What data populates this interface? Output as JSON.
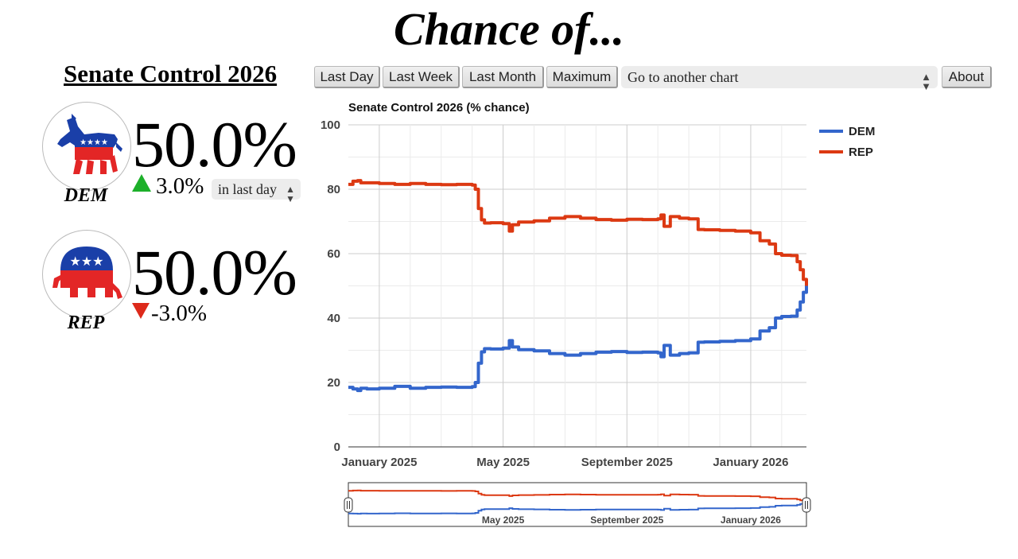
{
  "header": {
    "headline": "Chance of..."
  },
  "page_title": "Senate Control 2026",
  "toolbar": {
    "buttons": [
      "Last Day",
      "Last Week",
      "Last Month",
      "Maximum"
    ],
    "chart_select_value": "Go to another chart",
    "about_label": "About"
  },
  "parties": {
    "dem": {
      "name": "DEM",
      "pct": "50.0%",
      "change": "3.0%",
      "change_dir": "up",
      "period": "in last day"
    },
    "rep": {
      "name": "REP",
      "pct": "50.0%",
      "change": "-3.0%",
      "change_dir": "down"
    }
  },
  "colors": {
    "dem": "#3366cc",
    "rep": "#dc3912",
    "up": "#1db02a",
    "down": "#dd2a1b",
    "grid": "#cccccc"
  },
  "chart_data": {
    "type": "line",
    "title": "Senate Control 2026 (% chance)",
    "xlabel": "",
    "ylabel": "",
    "ylim": [
      0,
      100
    ],
    "yticks": [
      0,
      20,
      40,
      60,
      80,
      100
    ],
    "x_tick_labels": [
      "January 2025",
      "May 2025",
      "September 2025",
      "January 2026"
    ],
    "navigator_tick_labels": [
      "May 2025",
      "September 2025",
      "January 2026"
    ],
    "x_unit": "months since 2024-12-01",
    "xlim": [
      0.0,
      14.8
    ],
    "legend": {
      "position": "right",
      "entries": [
        "DEM",
        "REP"
      ]
    },
    "series": [
      {
        "name": "DEM",
        "x": [
          0.0,
          0.15,
          0.3,
          0.4,
          0.6,
          1.0,
          1.5,
          2.0,
          2.5,
          3.0,
          3.5,
          4.0,
          4.1,
          4.2,
          4.3,
          4.4,
          4.6,
          5.0,
          5.2,
          5.3,
          5.5,
          6.0,
          6.5,
          7.0,
          7.5,
          8.0,
          8.5,
          9.0,
          9.5,
          10.0,
          10.1,
          10.2,
          10.4,
          10.7,
          11.0,
          11.3,
          11.5,
          12.0,
          12.5,
          13.0,
          13.3,
          13.6,
          13.8,
          14.0,
          14.3,
          14.5,
          14.6,
          14.7,
          14.8
        ],
        "values": [
          18.5,
          18.0,
          17.5,
          18.2,
          18.0,
          18.2,
          18.8,
          18.2,
          18.5,
          18.6,
          18.5,
          18.7,
          20.0,
          26.0,
          29.5,
          30.5,
          30.4,
          30.7,
          33.0,
          31.0,
          30.2,
          29.8,
          29.0,
          28.5,
          29.0,
          29.4,
          29.6,
          29.3,
          29.4,
          29.2,
          28.0,
          31.5,
          28.5,
          29.0,
          29.2,
          32.5,
          32.6,
          32.8,
          33.0,
          33.5,
          36.0,
          37.0,
          40.0,
          40.5,
          40.6,
          42.5,
          45.0,
          48.0,
          50.0
        ]
      },
      {
        "name": "REP",
        "x": [
          0.0,
          0.15,
          0.3,
          0.4,
          0.6,
          1.0,
          1.5,
          2.0,
          2.5,
          3.0,
          3.5,
          4.0,
          4.1,
          4.2,
          4.3,
          4.4,
          4.6,
          5.0,
          5.2,
          5.3,
          5.5,
          6.0,
          6.5,
          7.0,
          7.5,
          8.0,
          8.5,
          9.0,
          9.5,
          10.0,
          10.1,
          10.2,
          10.4,
          10.7,
          11.0,
          11.3,
          11.5,
          12.0,
          12.5,
          13.0,
          13.3,
          13.6,
          13.8,
          14.0,
          14.3,
          14.5,
          14.6,
          14.7,
          14.8
        ],
        "values": [
          81.5,
          82.5,
          82.7,
          82.0,
          82.0,
          81.8,
          81.5,
          81.8,
          81.5,
          81.4,
          81.5,
          81.3,
          80.0,
          74.0,
          70.5,
          69.5,
          69.6,
          69.3,
          67.0,
          69.0,
          69.8,
          70.2,
          71.0,
          71.5,
          71.0,
          70.6,
          70.4,
          70.7,
          70.6,
          70.8,
          72.0,
          68.5,
          71.5,
          71.0,
          70.8,
          67.5,
          67.4,
          67.2,
          67.0,
          66.5,
          64.0,
          63.0,
          60.0,
          59.5,
          59.4,
          57.5,
          55.0,
          52.0,
          50.0
        ]
      }
    ]
  }
}
